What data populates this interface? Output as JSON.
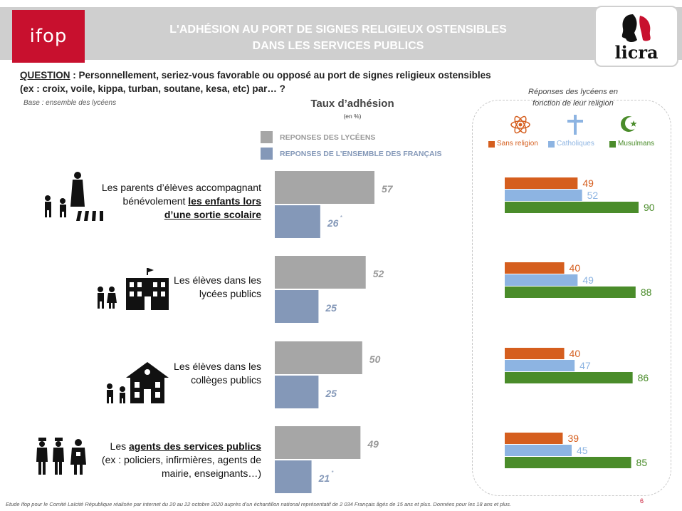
{
  "header": {
    "logo_left": "ifop",
    "title_line1": "L'ADHÉSION AU PORT DE SIGNES RELIGIEUX OSTENSIBLES",
    "title_line2": "DANS LES SERVICES PUBLICS",
    "logo_right": "licra"
  },
  "question": {
    "label": "QUESTION",
    "text1": " : Personnellement, seriez-vous favorable ou opposé au port de signes religieux ostensibles",
    "text2": "(ex : croix, voile, kippa, turban, soutane, kesa, etc) par… ?",
    "base": "Base : ensemble des lycéens"
  },
  "main_chart_header": {
    "title": "Taux d’adhésion",
    "unit": "(en %)"
  },
  "legend": {
    "lyceens": "REPONSES DES LYCÉENS",
    "francais": "REPONSES DE L’ENSEMBLE DES FRANÇAIS"
  },
  "right_panel": {
    "title_line1": "Réponses des lycéens en",
    "title_line2": "fonction de leur religion",
    "legend": [
      "Sans religion",
      "Catholiques",
      "Musulmans"
    ]
  },
  "categories": [
    {
      "line1": "Les parents d’élèves accompagnant",
      "line2": "bénévolement ",
      "line2_u": "les enfants lors",
      "line3_u": "d’une sortie scolaire"
    },
    {
      "line1": "Les élèves dans les",
      "line2": "lycées publics"
    },
    {
      "line1": "Les élèves dans les",
      "line2": "collèges publics"
    },
    {
      "line1_pre": "Les ",
      "line1_u": "agents des services publics",
      "line2": "(ex : policiers, infirmières, agents de",
      "line3": "mairie, enseignants…)"
    }
  ],
  "star": "*",
  "footer": "Etude Ifop pour le Comité Laïcité République réalisée par internet du 20 au 22 octobre 2020 auprès d’un échantillon national représentatif  de 2 034 Français âgés de 15 ans et plus. Données pour les 18 ans et plus.",
  "page_number": "6",
  "colors": {
    "lyceens": "#a6a6a6",
    "francais": "#8498b8",
    "sans_religion": "#d55e1e",
    "catholiques": "#8db4e2",
    "musulmans": "#4a8c2a",
    "ifop_red": "#c8102e"
  },
  "chart_data": [
    {
      "type": "bar",
      "title": "Taux d’adhésion",
      "categories": [
        "Les parents d’élèves accompagnant bénévolement les enfants lors d’une sortie scolaire",
        "Les élèves dans les lycées publics",
        "Les élèves dans les collèges publics",
        "Les agents des services publics (ex : policiers, infirmières, agents de mairie, enseignants…)"
      ],
      "series": [
        {
          "name": "REPONSES DES LYCÉENS",
          "values": [
            57,
            52,
            50,
            49
          ]
        },
        {
          "name": "REPONSES DE L’ENSEMBLE DES FRANÇAIS",
          "values": [
            26,
            25,
            25,
            21
          ]
        }
      ],
      "orientation": "horizontal"
    },
    {
      "type": "bar",
      "title": "Réponses des lycéens en fonction de leur religion",
      "categories": [
        "Les parents d’élèves accompagnant bénévolement les enfants lors d’une sortie scolaire",
        "Les élèves dans les lycées publics",
        "Les élèves dans les collèges publics",
        "Les agents des services publics (ex : policiers, infirmières, agents de mairie, enseignants…)"
      ],
      "series": [
        {
          "name": "Sans religion",
          "values": [
            49,
            40,
            40,
            39
          ]
        },
        {
          "name": "Catholiques",
          "values": [
            52,
            49,
            47,
            45
          ]
        },
        {
          "name": "Musulmans",
          "values": [
            90,
            88,
            86,
            85
          ]
        }
      ],
      "orientation": "horizontal"
    }
  ]
}
